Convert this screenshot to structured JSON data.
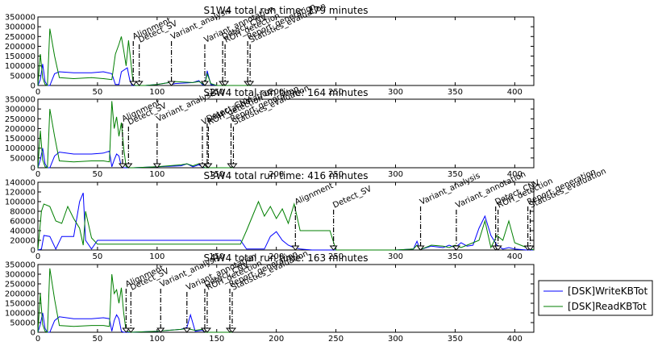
{
  "chart_data": {
    "type": "line",
    "legend": {
      "placement": "right",
      "entries": [
        {
          "label": "[DSK]WriteKBTot",
          "color": "#0000ff"
        },
        {
          "label": "[DSK]ReadKBTot",
          "color": "#007f00"
        }
      ]
    },
    "subplots": [
      {
        "title": "S1W4 total run time: 179 minutes",
        "xlim": [
          0,
          416
        ],
        "ylim": [
          0,
          350000
        ],
        "xticks": [
          0,
          50,
          100,
          150,
          200,
          250,
          300,
          350,
          400
        ],
        "yticks": [
          0,
          50000,
          100000,
          150000,
          200000,
          250000,
          300000,
          350000
        ],
        "ytick_labels": [
          "0",
          "50000",
          "100000",
          "150000",
          "200000",
          "250000",
          "300000",
          "350000"
        ],
        "events": [
          {
            "label": "Alignment",
            "x": 80
          },
          {
            "label": "Detect_SV",
            "x": 85
          },
          {
            "label": "Variant_analysis",
            "x": 112
          },
          {
            "label": "Variant_annotation",
            "x": 140
          },
          {
            "label": "Detect_CNV",
            "x": 155
          },
          {
            "label": "ROH_detection",
            "x": 157
          },
          {
            "label": "Report_generation",
            "x": 176
          },
          {
            "label": "Statistics_evaluation",
            "x": 178
          }
        ],
        "series": [
          {
            "name": "[DSK]WriteKBTot",
            "x": [
              0,
              2,
              4,
              6,
              8,
              10,
              14,
              18,
              30,
              45,
              55,
              62,
              65,
              68,
              70,
              75,
              77,
              79,
              81,
              84,
              90,
              100,
              110,
              112,
              115,
              130,
              135,
              138,
              140,
              142,
              145,
              150,
              160,
              175,
              179
            ],
            "y": [
              0,
              30000,
              110000,
              20000,
              0,
              0,
              60000,
              70000,
              65000,
              65000,
              70000,
              60000,
              5000,
              5000,
              70000,
              90000,
              30000,
              0,
              0,
              0,
              0,
              5000,
              15000,
              5000,
              10000,
              15000,
              25000,
              5000,
              0,
              75000,
              5000,
              0,
              0,
              0,
              0
            ]
          },
          {
            "name": "[DSK]ReadKBTot",
            "x": [
              0,
              2,
              4,
              6,
              8,
              10,
              14,
              18,
              30,
              45,
              55,
              62,
              65,
              68,
              70,
              72,
              74,
              76,
              78,
              80,
              82,
              84,
              90,
              100,
              110,
              112,
              115,
              130,
              135,
              138,
              140,
              142,
              145,
              150,
              160,
              175,
              179
            ],
            "y": [
              0,
              160000,
              40000,
              5000,
              0,
              290000,
              150000,
              40000,
              35000,
              40000,
              35000,
              30000,
              160000,
              210000,
              250000,
              180000,
              100000,
              230000,
              120000,
              5000,
              0,
              0,
              0,
              5000,
              15000,
              5000,
              20000,
              15000,
              20000,
              10000,
              0,
              60000,
              10000,
              0,
              0,
              0,
              0
            ]
          }
        ]
      },
      {
        "title": "S2W4 total run time: 164 minutes",
        "xlim": [
          0,
          416
        ],
        "ylim": [
          0,
          350000
        ],
        "xticks": [
          0,
          50,
          100,
          150,
          200,
          250,
          300,
          350,
          400
        ],
        "yticks": [
          0,
          50000,
          100000,
          150000,
          200000,
          250000,
          300000,
          350000
        ],
        "ytick_labels": [
          "0",
          "50000",
          "100000",
          "150000",
          "200000",
          "250000",
          "300000",
          "350000"
        ],
        "events": [
          {
            "label": "Alignment",
            "x": 71
          },
          {
            "label": "Detect_SV",
            "x": 76
          },
          {
            "label": "Variant_analysis",
            "x": 100
          },
          {
            "label": "Variant_annotation",
            "x": 138
          },
          {
            "label": "Detect_CNV",
            "x": 142
          },
          {
            "label": "ROH_detection",
            "x": 143
          },
          {
            "label": "Report_generation",
            "x": 162
          },
          {
            "label": "Statistics_evaluation",
            "x": 164
          }
        ],
        "series": [
          {
            "name": "[DSK]WriteKBTot",
            "x": [
              0,
              2,
              4,
              6,
              8,
              10,
              14,
              18,
              30,
              45,
              55,
              60,
              62,
              64,
              66,
              68,
              70,
              72,
              74,
              76,
              80,
              100,
              120,
              125,
              130,
              135,
              138,
              140,
              143,
              150,
              164
            ],
            "y": [
              0,
              40000,
              100000,
              20000,
              0,
              0,
              60000,
              80000,
              70000,
              70000,
              75000,
              85000,
              5000,
              40000,
              70000,
              60000,
              5000,
              0,
              0,
              0,
              0,
              5000,
              10000,
              20000,
              5000,
              15000,
              5000,
              0,
              0,
              0,
              0
            ]
          },
          {
            "name": "[DSK]ReadKBTot",
            "x": [
              0,
              2,
              4,
              6,
              8,
              10,
              14,
              18,
              30,
              45,
              55,
              60,
              62,
              64,
              66,
              68,
              70,
              72,
              74,
              76,
              80,
              100,
              120,
              125,
              130,
              135,
              138,
              140,
              143,
              150,
              164
            ],
            "y": [
              0,
              190000,
              40000,
              5000,
              0,
              300000,
              160000,
              35000,
              30000,
              35000,
              35000,
              30000,
              340000,
              200000,
              260000,
              160000,
              230000,
              100000,
              5000,
              0,
              0,
              5000,
              15000,
              20000,
              10000,
              20000,
              10000,
              0,
              0,
              0,
              0
            ]
          }
        ]
      },
      {
        "title": "S3W4 total run time: 416 minutes",
        "xlim": [
          0,
          416
        ],
        "ylim": [
          0,
          140000
        ],
        "xticks": [
          0,
          50,
          100,
          150,
          200,
          250,
          300,
          350,
          400
        ],
        "yticks": [
          0,
          20000,
          40000,
          60000,
          80000,
          100000,
          120000,
          140000
        ],
        "ytick_labels": [
          "0",
          "20000",
          "40000",
          "60000",
          "80000",
          "100000",
          "120000",
          "140000"
        ],
        "events": [
          {
            "label": "Alignment",
            "x": 216
          },
          {
            "label": "Detect_SV",
            "x": 248
          },
          {
            "label": "Variant_analysis",
            "x": 321
          },
          {
            "label": "Variant_annotation",
            "x": 351
          },
          {
            "label": "Detect_CNV",
            "x": 384
          },
          {
            "label": "ROH_detection",
            "x": 386
          },
          {
            "label": "Report_generation",
            "x": 411
          },
          {
            "label": "Statistics_evaluation",
            "x": 413
          }
        ],
        "series": [
          {
            "name": "[DSK]WriteKBTot",
            "x": [
              0,
              3,
              5,
              10,
              15,
              20,
              25,
              30,
              35,
              38,
              40,
              45,
              50,
              100,
              150,
              170,
              175,
              180,
              185,
              190,
              195,
              200,
              205,
              210,
              215,
              220,
              230,
              245,
              250,
              300,
              315,
              318,
              320,
              322,
              330,
              340,
              345,
              350,
              355,
              360,
              365,
              370,
              375,
              380,
              385,
              390,
              395,
              400,
              410,
              416
            ],
            "y": [
              0,
              2000,
              30000,
              28000,
              2000,
              28000,
              28000,
              28000,
              100000,
              118000,
              20000,
              2000,
              20000,
              20000,
              20000,
              20000,
              2000,
              2000,
              2000,
              2000,
              28000,
              38000,
              20000,
              10000,
              5000,
              2000,
              0,
              0,
              0,
              0,
              2000,
              18000,
              5000,
              2000,
              8000,
              5000,
              10000,
              5000,
              15000,
              8000,
              10000,
              45000,
              70000,
              30000,
              10000,
              2000,
              5000,
              2000,
              0,
              0
            ]
          },
          {
            "name": "[DSK]ReadKBTot",
            "x": [
              0,
              3,
              5,
              10,
              15,
              20,
              25,
              30,
              35,
              38,
              40,
              45,
              50,
              100,
              150,
              170,
              175,
              180,
              185,
              190,
              195,
              200,
              205,
              210,
              215,
              220,
              230,
              245,
              250,
              300,
              315,
              318,
              320,
              322,
              330,
              340,
              345,
              350,
              355,
              360,
              365,
              370,
              375,
              380,
              385,
              390,
              395,
              400,
              410,
              416
            ],
            "y": [
              0,
              80000,
              95000,
              90000,
              60000,
              55000,
              90000,
              65000,
              45000,
              10000,
              80000,
              25000,
              12000,
              12000,
              12000,
              12000,
              40000,
              70000,
              100000,
              70000,
              90000,
              65000,
              85000,
              55000,
              95000,
              40000,
              40000,
              40000,
              0,
              0,
              2000,
              10000,
              2000,
              2000,
              10000,
              8000,
              5000,
              10000,
              5000,
              10000,
              15000,
              20000,
              60000,
              5000,
              30000,
              20000,
              60000,
              15000,
              5000,
              0
            ]
          }
        ]
      },
      {
        "title": "S4W4 total run time: 163 minutes",
        "xlim": [
          0,
          416
        ],
        "ylim": [
          0,
          350000
        ],
        "xticks": [
          0,
          50,
          100,
          150,
          200,
          250,
          300,
          350,
          400
        ],
        "yticks": [
          0,
          50000,
          100000,
          150000,
          200000,
          250000,
          300000,
          350000
        ],
        "ytick_labels": [
          "0",
          "50000",
          "100000",
          "150000",
          "200000",
          "250000",
          "300000",
          "350000"
        ],
        "events": [
          {
            "label": "Alignment",
            "x": 74
          },
          {
            "label": "Detect_SV",
            "x": 78
          },
          {
            "label": "Variant_analysis",
            "x": 103
          },
          {
            "label": "Variant_annotation",
            "x": 125
          },
          {
            "label": "Detect_CNV",
            "x": 140
          },
          {
            "label": "ROH_detection",
            "x": 142
          },
          {
            "label": "Report_generation",
            "x": 161
          },
          {
            "label": "Statistics_evaluation",
            "x": 163
          }
        ],
        "series": [
          {
            "name": "[DSK]WriteKBTot",
            "x": [
              0,
              2,
              4,
              6,
              8,
              10,
              14,
              18,
              30,
              45,
              55,
              60,
              62,
              64,
              66,
              68,
              70,
              72,
              74,
              78,
              100,
              120,
              125,
              128,
              132,
              138,
              140,
              145,
              163
            ],
            "y": [
              0,
              40000,
              100000,
              20000,
              0,
              0,
              60000,
              80000,
              70000,
              70000,
              75000,
              70000,
              5000,
              60000,
              90000,
              70000,
              5000,
              0,
              0,
              0,
              5000,
              15000,
              25000,
              90000,
              5000,
              10000,
              0,
              0,
              0
            ]
          },
          {
            "name": "[DSK]ReadKBTot",
            "x": [
              0,
              2,
              4,
              6,
              8,
              10,
              14,
              18,
              30,
              45,
              55,
              60,
              62,
              64,
              66,
              68,
              70,
              72,
              74,
              78,
              100,
              120,
              125,
              128,
              132,
              138,
              140,
              145,
              163
            ],
            "y": [
              0,
              200000,
              40000,
              5000,
              0,
              330000,
              170000,
              35000,
              30000,
              35000,
              35000,
              30000,
              300000,
              200000,
              220000,
              150000,
              230000,
              100000,
              5000,
              0,
              5000,
              15000,
              20000,
              15000,
              10000,
              15000,
              0,
              0,
              0
            ]
          }
        ]
      }
    ]
  }
}
